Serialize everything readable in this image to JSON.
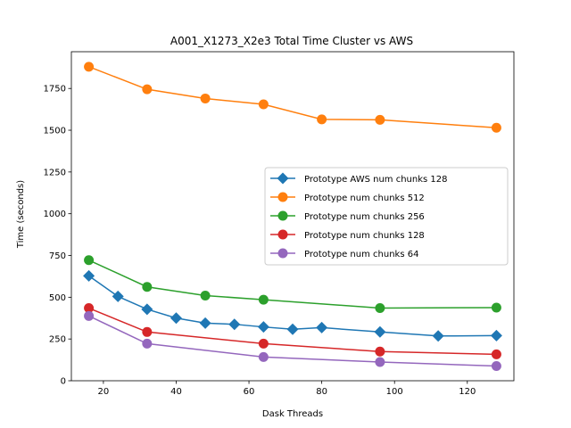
{
  "chart_data": {
    "type": "line",
    "title": "A001_X1273_X2e3 Total Time Cluster vs AWS",
    "xlabel": "Dask Threads",
    "ylabel": "Time (seconds)",
    "xlim": [
      11.2,
      132.8
    ],
    "ylim": [
      0,
      1970
    ],
    "xticks": [
      20,
      40,
      60,
      80,
      100,
      120
    ],
    "yticks": [
      0,
      250,
      500,
      750,
      1000,
      1250,
      1500,
      1750
    ],
    "grid": false,
    "legend_position": "center-right",
    "series": [
      {
        "name": "Prototype AWS num chunks 128",
        "color": "#1f77b4",
        "marker": "diamond",
        "x": [
          16,
          24,
          32,
          40,
          48,
          56,
          64,
          72,
          80,
          96,
          112,
          128
        ],
        "y": [
          628,
          505,
          428,
          375,
          345,
          338,
          322,
          308,
          318,
          292,
          268,
          270
        ]
      },
      {
        "name": "Prototype num chunks 512",
        "color": "#ff7f0e",
        "marker": "circle",
        "x": [
          16,
          32,
          48,
          64,
          80,
          96,
          128
        ],
        "y": [
          1880,
          1745,
          1690,
          1655,
          1565,
          1562,
          1515
        ]
      },
      {
        "name": "Prototype num chunks 256",
        "color": "#2ca02c",
        "marker": "circle",
        "x": [
          16,
          32,
          48,
          64,
          96,
          128
        ],
        "y": [
          722,
          562,
          510,
          485,
          435,
          438
        ]
      },
      {
        "name": "Prototype num chunks 128",
        "color": "#d62728",
        "marker": "circle",
        "x": [
          16,
          32,
          64,
          96,
          128
        ],
        "y": [
          435,
          292,
          222,
          175,
          158
        ]
      },
      {
        "name": "Prototype num chunks 64",
        "color": "#9467bd",
        "marker": "circle",
        "x": [
          16,
          32,
          64,
          96,
          128
        ],
        "y": [
          388,
          222,
          142,
          112,
          88
        ]
      }
    ]
  }
}
